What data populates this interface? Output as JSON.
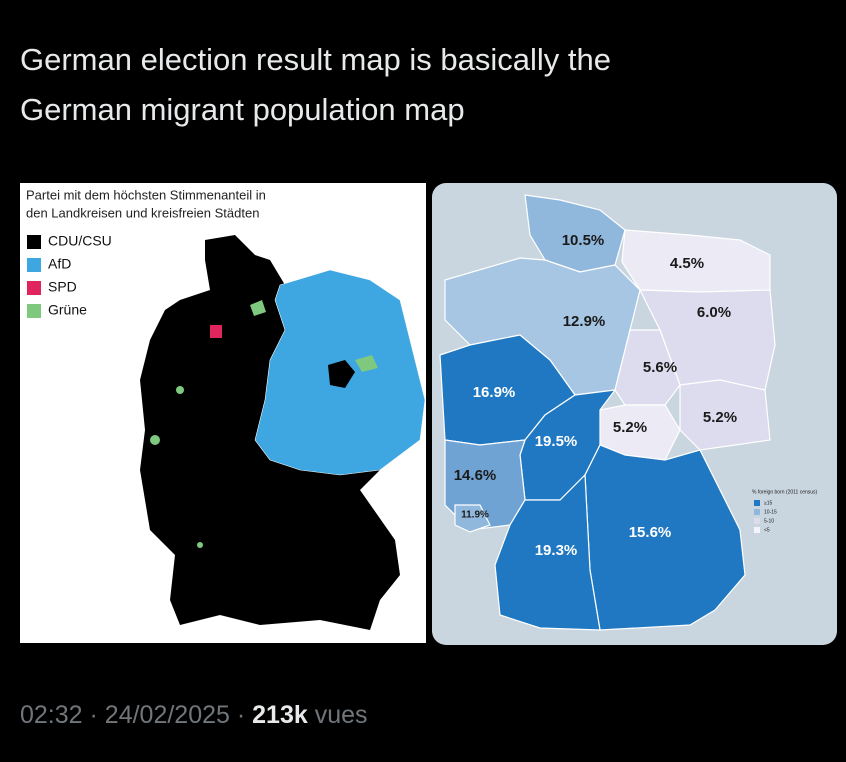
{
  "post": {
    "title_lines": [
      "German election result map is basically the",
      "German migrant population map"
    ]
  },
  "left_map": {
    "title_lines": [
      "Partei mit dem höchsten Stimmenanteil in",
      "den Landkreisen und kreisfreien Städten"
    ],
    "legend": [
      {
        "label": "CDU/CSU",
        "color": "#000000"
      },
      {
        "label": "AfD",
        "color": "#3ea6e0"
      },
      {
        "label": "SPD",
        "color": "#e0245e"
      },
      {
        "label": "Grüne",
        "color": "#7fc97f"
      }
    ]
  },
  "right_map": {
    "regions": [
      {
        "label": "10.5%"
      },
      {
        "label": "4.5%"
      },
      {
        "label": "6.0%"
      },
      {
        "label": "12.9%"
      },
      {
        "label": "5.6%"
      },
      {
        "label": "16.9%"
      },
      {
        "label": "5.2%"
      },
      {
        "label": "5.2%"
      },
      {
        "label": "19.5%"
      },
      {
        "label": "14.6%"
      },
      {
        "label": "11.9%"
      },
      {
        "label": "15.6%"
      },
      {
        "label": "19.3%"
      }
    ],
    "legend_title": "% foreign born (2011 census)",
    "legend": [
      "≥15",
      "10-15",
      "5-10",
      "<5"
    ]
  },
  "footer": {
    "time": "02:32",
    "separator": "·",
    "date": "24/02/2025",
    "views": "213k",
    "views_label": "vues"
  }
}
